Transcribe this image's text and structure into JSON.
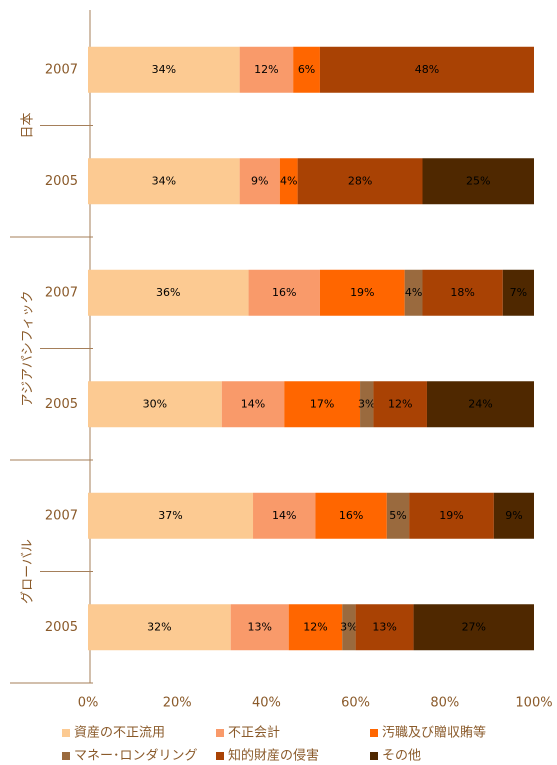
{
  "chart_data": {
    "type": "stacked_bar_horizontal",
    "groups": [
      "日本",
      "アジアパシフィック",
      "グローバル"
    ],
    "categories": [
      "2007",
      "2005",
      "2007",
      "2005",
      "2007",
      "2005"
    ],
    "series": [
      {
        "name": "資産の不正流用",
        "color": "#fcca92",
        "values": [
          34,
          34,
          36,
          30,
          37,
          32
        ],
        "value_labels": [
          "34%",
          "34%",
          "36%",
          "30%",
          "37%",
          "32%"
        ]
      },
      {
        "name": "不正会計",
        "color": "#f99a6a",
        "values": [
          12,
          9,
          16,
          14,
          14,
          13
        ],
        "value_labels": [
          "12%",
          "9%",
          "16%",
          "14%",
          "14%",
          "13%"
        ]
      },
      {
        "name": "汚職及び贈収賄等",
        "color": "#ff6600",
        "values": [
          6,
          4,
          19,
          17,
          16,
          12
        ],
        "value_labels": [
          "6%",
          "4%",
          "19%",
          "17%",
          "16%",
          "12%"
        ]
      },
      {
        "name": "マネー･ロンダリング",
        "color": "#9a6a3e",
        "values": [
          null,
          null,
          4,
          3,
          5,
          3
        ],
        "value_labels": [
          null,
          null,
          "4%",
          "3%",
          "5%",
          "3%"
        ]
      },
      {
        "name": "知的財産の侵害",
        "color": "#a94204",
        "values": [
          48,
          28,
          18,
          12,
          19,
          13
        ],
        "value_labels": [
          "48%",
          "28%",
          "18%",
          "12%",
          "19%",
          "13%"
        ]
      },
      {
        "name": "その他",
        "color": "#4f2800",
        "values": [
          null,
          25,
          7,
          24,
          9,
          27
        ],
        "value_labels": [
          null,
          "25%",
          "7%",
          "24%",
          "9%",
          "27%"
        ]
      }
    ],
    "xlim": [
      0,
      100
    ],
    "xticks": [
      {
        "value": 0,
        "label": "0%"
      },
      {
        "value": 20,
        "label": "20%"
      },
      {
        "value": 40,
        "label": "40%"
      },
      {
        "value": 60,
        "label": "60%"
      },
      {
        "value": 80,
        "label": "80%"
      },
      {
        "value": 100,
        "label": "100%"
      }
    ]
  }
}
